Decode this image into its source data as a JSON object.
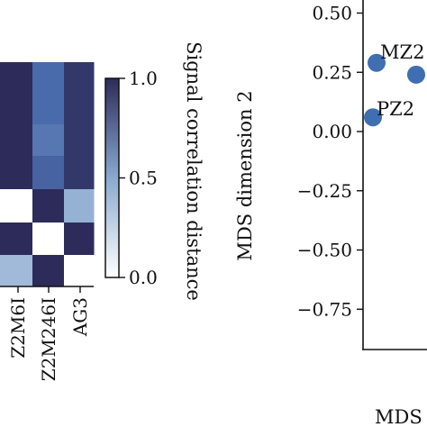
{
  "chart_data": [
    {
      "type": "heatmap",
      "columns": [
        "Z2M6I",
        "Z2M246I",
        "AG3"
      ],
      "rows_visible": 7,
      "values": [
        [
          1.0,
          0.75,
          0.95
        ],
        [
          1.0,
          0.75,
          0.95
        ],
        [
          1.0,
          0.7,
          0.95
        ],
        [
          1.0,
          0.78,
          0.95
        ],
        [
          0.0,
          1.0,
          0.45
        ],
        [
          1.0,
          0.0,
          1.0
        ],
        [
          0.4,
          1.0,
          0.0
        ]
      ],
      "colorbar": {
        "label": "Signal correlation distance",
        "range": [
          0.0,
          1.0
        ],
        "ticks": [
          "0.0",
          "0.5",
          "1.0"
        ],
        "low_color": "#ffffff",
        "high_color": "#2d2b5a"
      }
    },
    {
      "type": "scatter",
      "ylabel": "MDS dimension 2",
      "xlabel": "MDS",
      "ylim": [
        -0.85,
        0.52
      ],
      "yticks": [
        {
          "value": 0.5,
          "label": "0.50"
        },
        {
          "value": 0.25,
          "label": "0.25"
        },
        {
          "value": 0.0,
          "label": "0.00"
        },
        {
          "value": -0.25,
          "label": "−0.25"
        },
        {
          "value": -0.5,
          "label": "−0.50"
        },
        {
          "value": -0.75,
          "label": "−0.75"
        }
      ],
      "points": [
        {
          "label": "MZ2",
          "y": 0.29
        },
        {
          "label": "",
          "y": 0.24
        },
        {
          "label": "PZ2",
          "y": 0.06
        }
      ],
      "point_color": "#3f6fb0"
    }
  ]
}
